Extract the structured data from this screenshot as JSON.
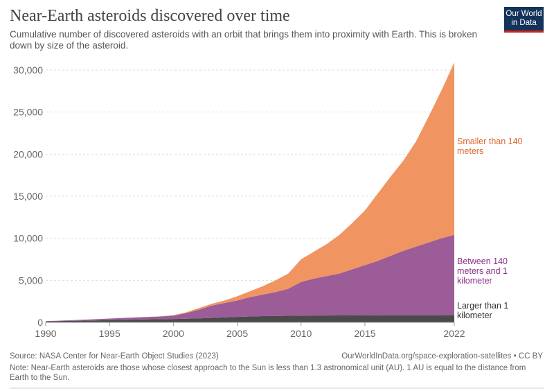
{
  "header": {
    "title": "Near-Earth asteroids discovered over time",
    "subtitle": "Cumulative number of discovered asteroids with an orbit that brings them into proximity with Earth. This is broken down by size of the asteroid.",
    "logo": "Our World in Data"
  },
  "footer": {
    "source": "Source: NASA Center for Near-Earth Object Studies (2023)",
    "url": "OurWorldInData.org/space-exploration-satellites • CC BY",
    "note": "Note: Near-Earth asteroids are those whose closest approach to the Sun is less than 1.3 astronomical unit (AU). 1 AU is equal to the distance from Earth to the Sun."
  },
  "chart_data": {
    "type": "area",
    "stacked": true,
    "title": "Near-Earth asteroids discovered over time",
    "xlim": [
      1990,
      2022
    ],
    "ylim": [
      0,
      30000
    ],
    "grid": true,
    "x_ticks": [
      1990,
      1995,
      2000,
      2005,
      2010,
      2015,
      2022
    ],
    "y_ticks": [
      0,
      5000,
      10000,
      15000,
      20000,
      25000,
      30000
    ],
    "y_tick_labels": [
      "0",
      "5,000",
      "10,000",
      "15,000",
      "20,000",
      "25,000",
      "30,000"
    ],
    "x": [
      1990,
      1991,
      1992,
      1993,
      1994,
      1995,
      1996,
      1997,
      1998,
      1999,
      2000,
      2001,
      2002,
      2003,
      2004,
      2005,
      2006,
      2007,
      2008,
      2009,
      2010,
      2011,
      2012,
      2013,
      2014,
      2015,
      2016,
      2017,
      2018,
      2019,
      2020,
      2021,
      2022
    ],
    "series": [
      {
        "name": "Larger than 1 kilometer",
        "color": "#4a4a4a",
        "label_color": "#333333",
        "values": [
          100,
          150,
          180,
          210,
          240,
          270,
          300,
          330,
          360,
          380,
          400,
          430,
          470,
          530,
          590,
          650,
          700,
          740,
          760,
          780,
          800,
          810,
          815,
          820,
          825,
          830,
          835,
          840,
          843,
          846,
          848,
          850,
          852
        ]
      },
      {
        "name": "Between 140 meters and 1 kilometer",
        "color": "#9b5c98",
        "label_color": "#8b2f8a",
        "values": [
          50,
          50,
          80,
          110,
          140,
          180,
          220,
          250,
          280,
          320,
          400,
          670,
          1030,
          1470,
          1710,
          1950,
          2300,
          2560,
          2840,
          3220,
          4000,
          4390,
          4685,
          4980,
          5475,
          5970,
          6465,
          7060,
          7657,
          8154,
          8652,
          9150,
          9548
        ]
      },
      {
        "name": "Smaller than 140 meters",
        "color": "#f09462",
        "label_color": "#d9672c",
        "values": [
          0,
          0,
          0,
          0,
          0,
          5,
          10,
          15,
          20,
          20,
          50,
          100,
          200,
          200,
          300,
          500,
          700,
          1000,
          1400,
          1800,
          2700,
          3200,
          3800,
          4600,
          5500,
          6500,
          8000,
          9400,
          10700,
          12500,
          15000,
          17600,
          20500
        ]
      }
    ]
  }
}
